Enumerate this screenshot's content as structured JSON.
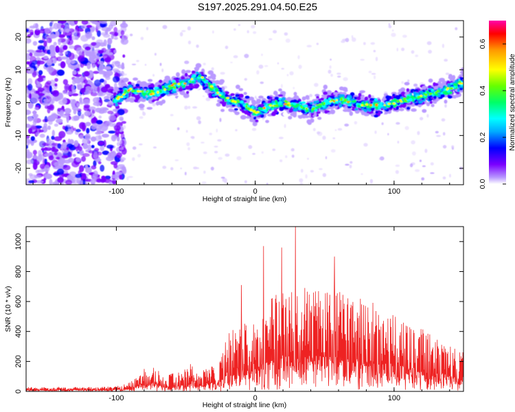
{
  "title": "S197.2025.291.04.50.E25",
  "chart_data": [
    {
      "type": "heatmap",
      "name": "spectrogram",
      "xlabel": "Height of straight line (km)",
      "ylabel": "Frequency (Hz)",
      "xlim": [
        -165,
        150
      ],
      "ylim": [
        -25,
        25
      ],
      "xticks": [
        -100,
        0,
        100
      ],
      "xtick_labels": [
        "-100",
        "0",
        "100"
      ],
      "yticks": [
        -20,
        -10,
        0,
        10,
        20
      ],
      "ytick_labels": [
        "-20",
        "-10",
        "0",
        "10",
        "20"
      ],
      "noise_region_x": [
        -165,
        -98
      ],
      "ridge": {
        "x": [
          -100,
          -90,
          -80,
          -70,
          -60,
          -50,
          -40,
          -30,
          -20,
          -10,
          0,
          10,
          20,
          30,
          40,
          50,
          60,
          70,
          80,
          90,
          100,
          110,
          120,
          130,
          140,
          148
        ],
        "freq": [
          1,
          4,
          3,
          3,
          5,
          6,
          8,
          4,
          1,
          0,
          -3,
          -1,
          0,
          -1,
          -2,
          0,
          1,
          0,
          -1,
          -1,
          0,
          1,
          2,
          3,
          4,
          6
        ]
      },
      "colorbar": {
        "label": "Normalized spectral amplitude",
        "range": [
          0,
          0.7
        ],
        "ticks": [
          0,
          0.2,
          0.4,
          0.6
        ],
        "tick_labels": [
          "0.0",
          "0.2",
          "0.4",
          "0.6"
        ],
        "colors": [
          "#ffffff",
          "#b999ff",
          "#7a00ff",
          "#0000ff",
          "#00aaff",
          "#00ffff",
          "#00ff66",
          "#66ff00",
          "#ffff00",
          "#ff9900",
          "#ff0000",
          "#ff00aa"
        ]
      }
    },
    {
      "type": "line",
      "name": "snr",
      "xlabel": "Height of straight line (km)",
      "ylabel": "SNR (10 * v/v)",
      "xlim": [
        -165,
        150
      ],
      "ylim": [
        0,
        1100
      ],
      "xticks": [
        -100,
        0,
        100
      ],
      "xtick_labels": [
        "-100",
        "0",
        "100"
      ],
      "yticks": [
        0,
        200,
        400,
        600,
        800,
        1000
      ],
      "ytick_labels": [
        "0",
        "200",
        "400",
        "600",
        "800",
        "1000"
      ],
      "color": "#ee2222",
      "envelope": {
        "x": [
          -165,
          -130,
          -110,
          -100,
          -90,
          -85,
          -80,
          -75,
          -70,
          -65,
          -60,
          -55,
          -50,
          -45,
          -40,
          -35,
          -30,
          -25,
          -20,
          -10,
          0,
          10,
          20,
          30,
          40,
          50,
          60,
          70,
          80,
          90,
          100,
          110,
          120,
          130,
          140,
          150
        ],
        "max": [
          30,
          30,
          30,
          35,
          60,
          120,
          160,
          170,
          150,
          100,
          120,
          140,
          150,
          200,
          120,
          160,
          180,
          220,
          380,
          480,
          550,
          630,
          700,
          700,
          690,
          680,
          670,
          670,
          620,
          560,
          520,
          470,
          420,
          370,
          320,
          280
        ]
      },
      "spikes": [
        {
          "x": 6,
          "y": 970
        },
        {
          "x": 29,
          "y": 1100
        },
        {
          "x": 19,
          "y": 960
        },
        {
          "x": 57,
          "y": 900
        },
        {
          "x": -10,
          "y": 710
        }
      ]
    }
  ]
}
